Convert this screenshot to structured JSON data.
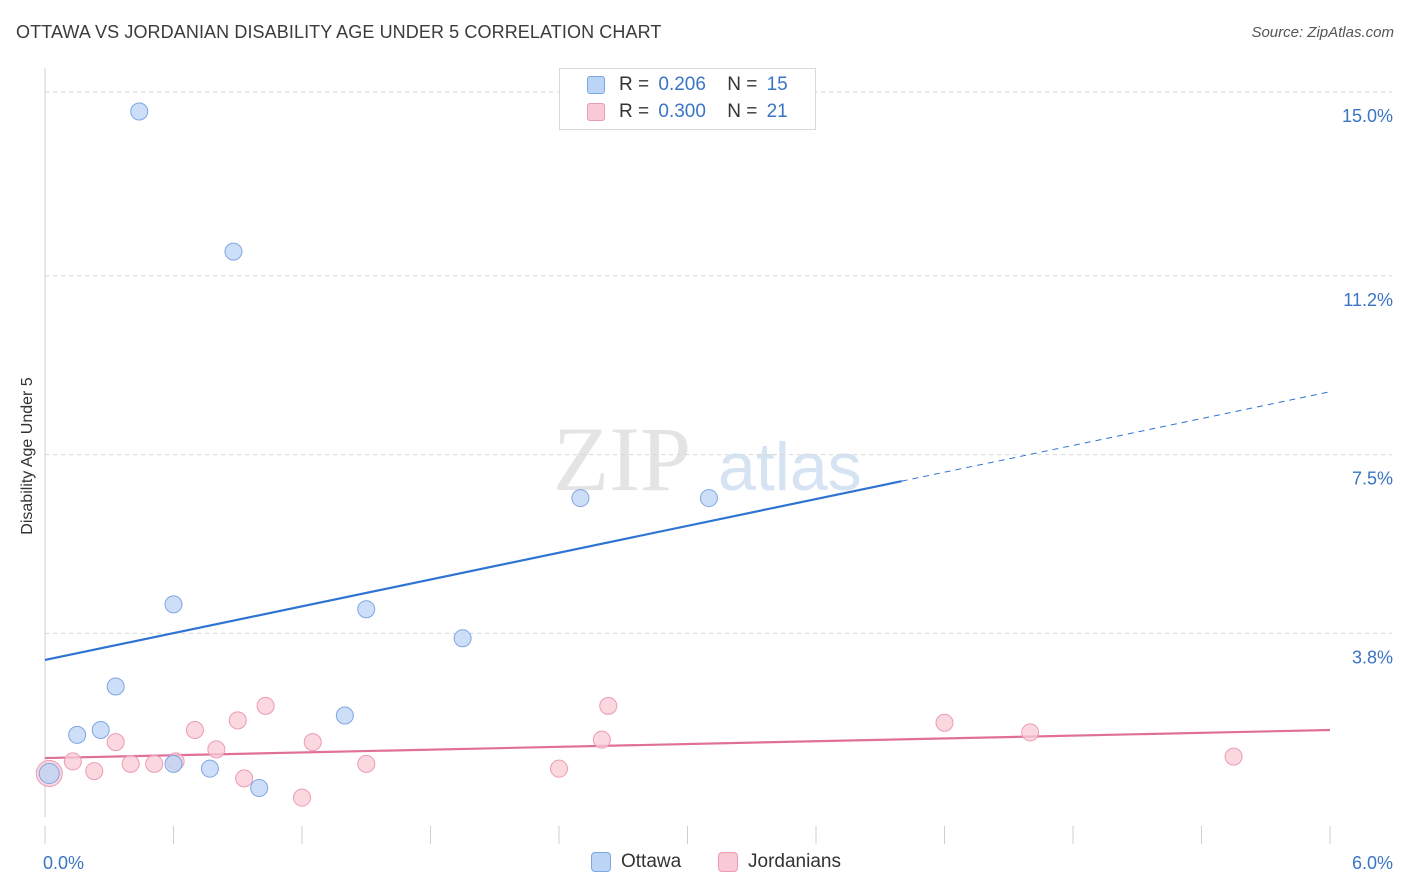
{
  "header": {
    "title": "OTTAWA VS JORDANIAN DISABILITY AGE UNDER 5 CORRELATION CHART",
    "source": "Source: ZipAtlas.com"
  },
  "watermark": {
    "part1": "ZIP",
    "part2": "atlas"
  },
  "legend": {
    "r_label": "R =",
    "n_label": "N =",
    "rows": [
      {
        "r": "0.206",
        "n": "15",
        "fill": "#bcd4f6",
        "stroke": "#7ea6e0"
      },
      {
        "r": "0.300",
        "n": "21",
        "fill": "#f9c9d6",
        "stroke": "#ec9cb2"
      }
    ]
  },
  "colors": {
    "ottawa_fill": "#bcd4f6",
    "ottawa_stroke": "#7ea6e0",
    "ottawa_line": "#2f74d0",
    "jordan_fill": "#f9c9d6",
    "jordan_stroke": "#ec9cb2",
    "jordan_line": "#e0709a",
    "grid": "#d8d8d8",
    "tick_label": "#3a75c4"
  },
  "chart_data": {
    "type": "scatter",
    "title": "OTTAWA VS JORDANIAN DISABILITY AGE UNDER 5 CORRELATION CHART",
    "xlabel": "",
    "ylabel": "Disability Age Under 5",
    "xlim": [
      0,
      6.0
    ],
    "ylim": [
      0,
      15.5
    ],
    "x_tick_labels": [
      "0.0%",
      "6.0%"
    ],
    "y_ticks": [
      3.8,
      7.5,
      11.2,
      15.0
    ],
    "y_tick_labels": [
      "3.8%",
      "7.5%",
      "11.2%",
      "15.0%"
    ],
    "grid": "horizontal dashed",
    "legend_position": "top-center and bottom",
    "series": [
      {
        "name": "Ottawa",
        "r": 0.206,
        "n": 15,
        "points": [
          [
            0.44,
            14.6
          ],
          [
            0.88,
            11.7
          ],
          [
            0.6,
            4.4
          ],
          [
            1.5,
            4.3
          ],
          [
            1.95,
            3.7
          ],
          [
            2.5,
            6.6
          ],
          [
            3.1,
            6.6
          ],
          [
            0.33,
            2.7
          ],
          [
            0.15,
            1.7
          ],
          [
            0.26,
            1.8
          ],
          [
            1.4,
            2.1
          ],
          [
            0.6,
            1.1
          ],
          [
            0.77,
            1.0
          ],
          [
            1.0,
            0.6
          ],
          [
            0.02,
            0.9
          ]
        ],
        "trend": {
          "x0": 0.0,
          "y0": 3.25,
          "x1": 4.0,
          "y1": 6.95,
          "dashed_to_x": 6.0,
          "dashed_to_y": 8.8
        }
      },
      {
        "name": "Jordanians",
        "r": 0.3,
        "n": 21,
        "points": [
          [
            0.02,
            0.9
          ],
          [
            0.13,
            1.15
          ],
          [
            0.23,
            0.95
          ],
          [
            0.33,
            1.55
          ],
          [
            0.4,
            1.1
          ],
          [
            0.51,
            1.1
          ],
          [
            0.61,
            1.15
          ],
          [
            0.7,
            1.8
          ],
          [
            0.8,
            1.4
          ],
          [
            0.9,
            2.0
          ],
          [
            0.93,
            0.8
          ],
          [
            1.03,
            2.3
          ],
          [
            1.2,
            0.4
          ],
          [
            1.25,
            1.55
          ],
          [
            1.5,
            1.1
          ],
          [
            2.4,
            1.0
          ],
          [
            2.6,
            1.6
          ],
          [
            2.63,
            2.3
          ],
          [
            4.2,
            1.95
          ],
          [
            4.6,
            1.75
          ],
          [
            5.55,
            1.25
          ]
        ],
        "trend": {
          "x0": 0.0,
          "y0": 1.22,
          "x1": 6.0,
          "y1": 1.8
        }
      }
    ]
  }
}
